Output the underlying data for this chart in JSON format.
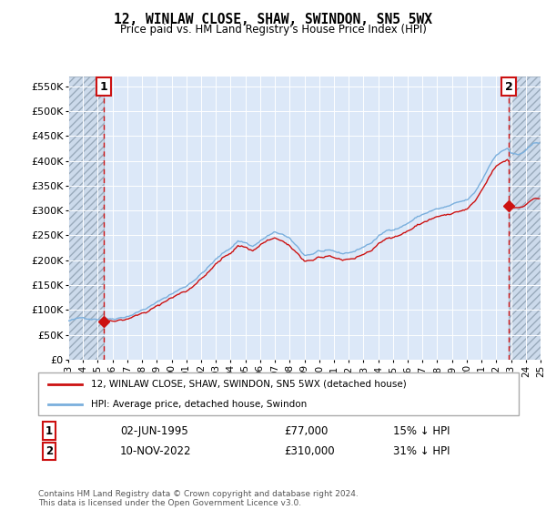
{
  "title": "12, WINLAW CLOSE, SHAW, SWINDON, SN5 5WX",
  "subtitle": "Price paid vs. HM Land Registry's House Price Index (HPI)",
  "ylim": [
    0,
    570000
  ],
  "yticks": [
    0,
    50000,
    100000,
    150000,
    200000,
    250000,
    300000,
    350000,
    400000,
    450000,
    500000,
    550000
  ],
  "ytick_labels": [
    "£0",
    "£50K",
    "£100K",
    "£150K",
    "£200K",
    "£250K",
    "£300K",
    "£350K",
    "£400K",
    "£450K",
    "£500K",
    "£550K"
  ],
  "plot_bg_color": "#dce8f8",
  "hpi_color": "#7aafdd",
  "price_color": "#cc1111",
  "marker1_x": 1995.42,
  "marker1_y": 77000,
  "marker2_x": 2022.86,
  "marker2_y": 310000,
  "legend_label1": "12, WINLAW CLOSE, SHAW, SWINDON, SN5 5WX (detached house)",
  "legend_label2": "HPI: Average price, detached house, Swindon",
  "table_row1": [
    "1",
    "02-JUN-1995",
    "£77,000",
    "15% ↓ HPI"
  ],
  "table_row2": [
    "2",
    "10-NOV-2022",
    "£310,000",
    "31% ↓ HPI"
  ],
  "footnote": "Contains HM Land Registry data © Crown copyright and database right 2024.\nThis data is licensed under the Open Government Licence v3.0.",
  "x_start": 1993,
  "x_end": 2025,
  "xtick_years": [
    1993,
    1994,
    1995,
    1996,
    1997,
    1998,
    1999,
    2000,
    2001,
    2002,
    2003,
    2004,
    2005,
    2006,
    2007,
    2008,
    2009,
    2010,
    2011,
    2012,
    2013,
    2014,
    2015,
    2016,
    2017,
    2018,
    2019,
    2020,
    2021,
    2022,
    2023,
    2024,
    2025
  ]
}
